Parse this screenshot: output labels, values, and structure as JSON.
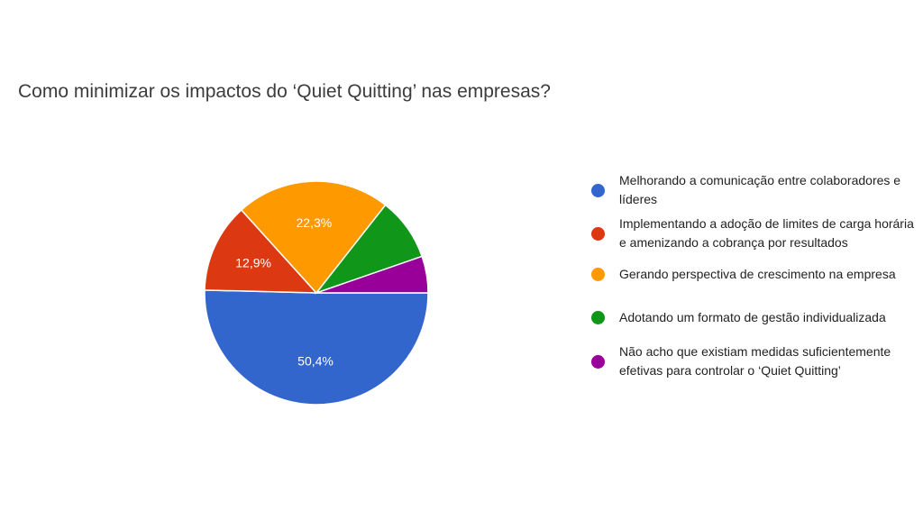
{
  "chart_data": {
    "type": "pie",
    "title": "Como minimizar os impactos do ‘Quiet Quitting’ nas empresas?",
    "categories": [
      "Melhorando a comunicação entre colaboradores e líderes",
      "Implementando a adoção de limites de carga horária e amenizando a cobrança por resultados",
      "Gerando perspectiva de crescimento na empresa",
      "Adotando um formato de gestão individualizada",
      "Não acho que existiam medidas suficientemente efetivas para controlar o ‘Quiet Quitting’"
    ],
    "values": [
      50.4,
      12.9,
      22.3,
      9.1,
      5.3
    ],
    "value_labels": [
      "50,4%",
      "12,9%",
      "22,3%",
      null,
      null
    ],
    "colors": [
      "#3366cc",
      "#dc3912",
      "#ff9900",
      "#109618",
      "#990099"
    ],
    "legend": "right"
  }
}
